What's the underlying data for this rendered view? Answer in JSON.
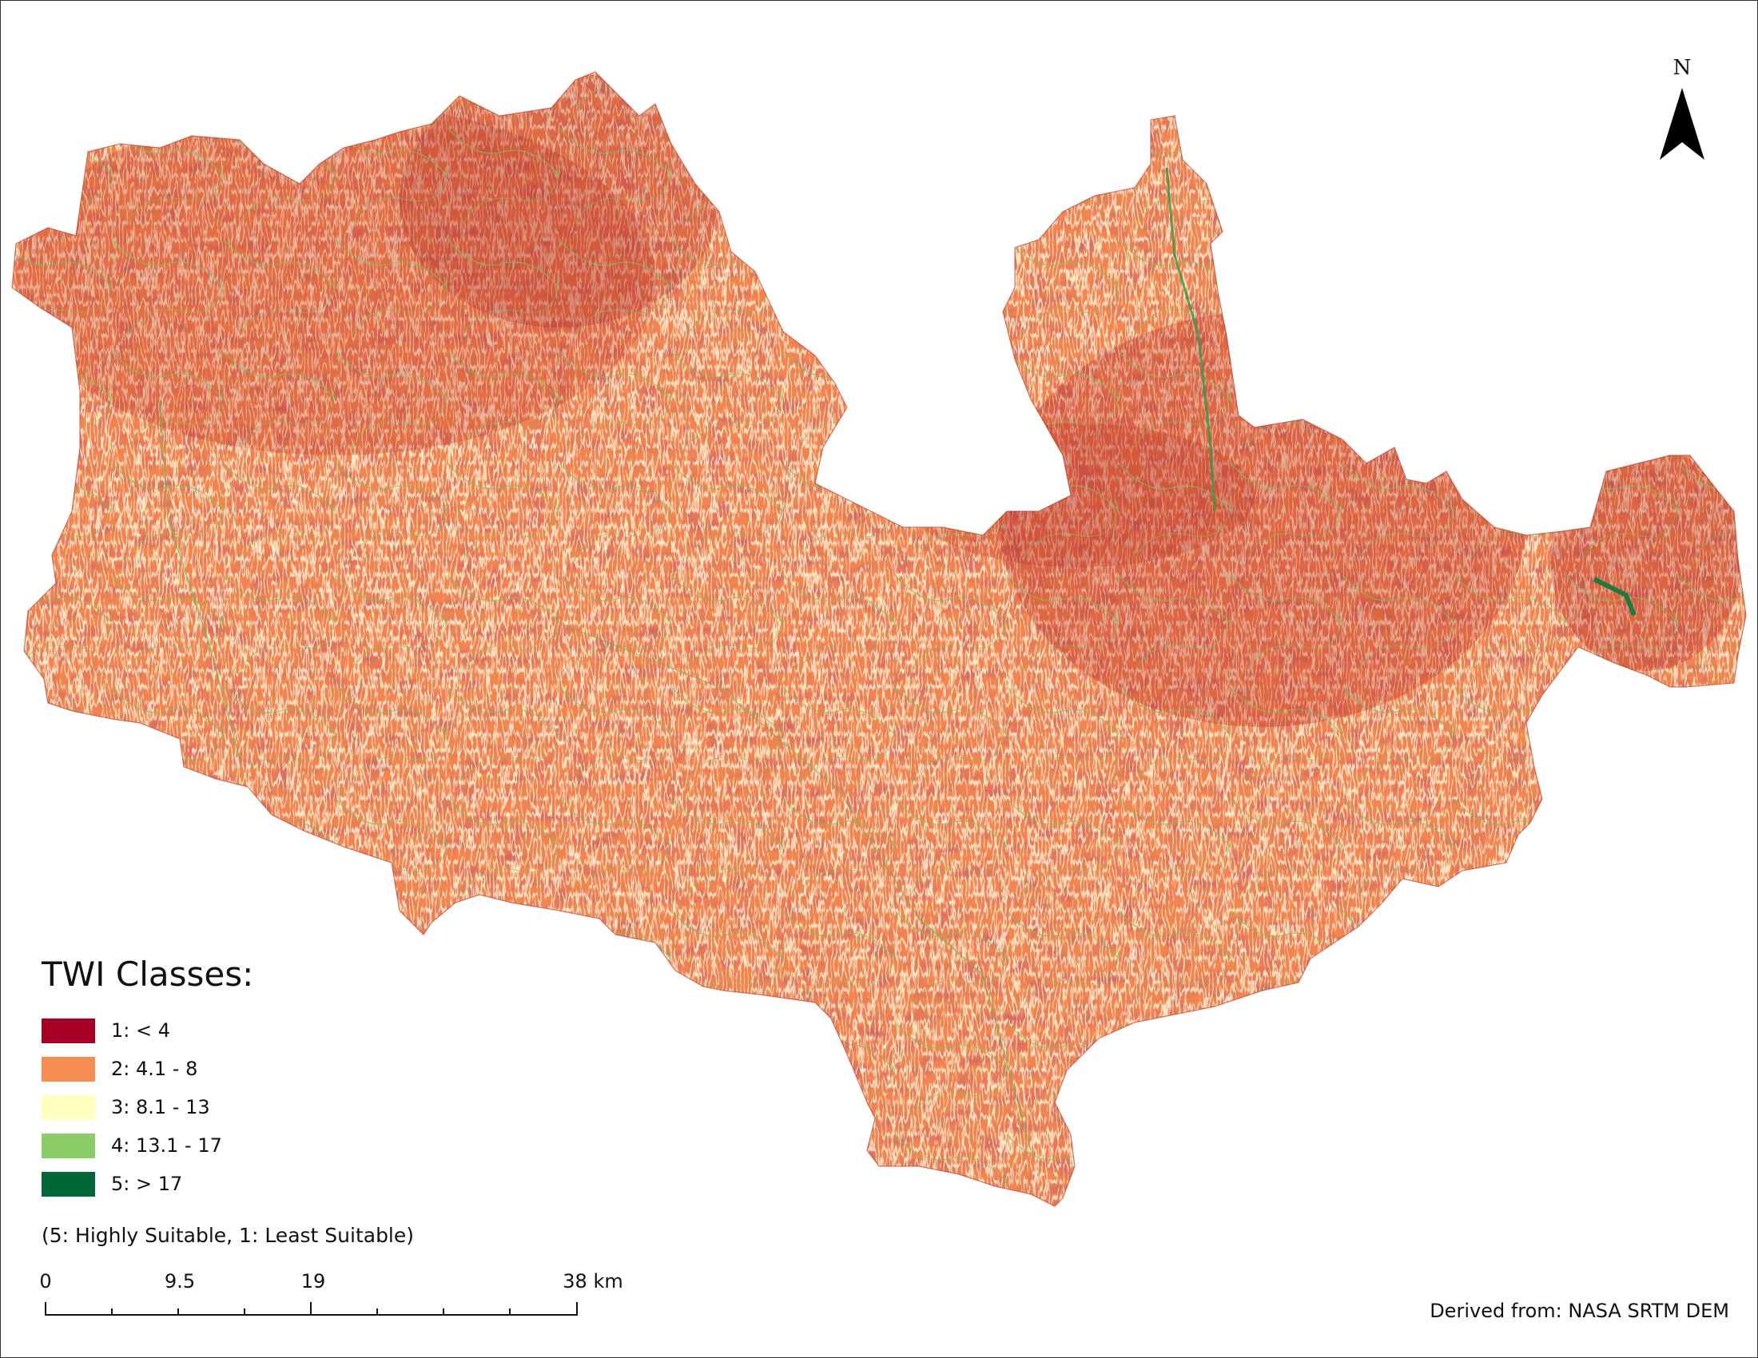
{
  "map": {
    "north_label": "N",
    "legend": {
      "title": "TWI Classes:",
      "classes": [
        {
          "label": "1: < 4",
          "color": "#a50026"
        },
        {
          "label": "2: 4.1 - 8",
          "color": "#f68d53"
        },
        {
          "label": "3: 8.1 - 13",
          "color": "#ffffbf"
        },
        {
          "label": "4: 13.1 - 17",
          "color": "#8ccc68"
        },
        {
          "label": "5: > 17",
          "color": "#006837"
        }
      ],
      "note": "(5: Highly Suitable, 1: Least Suitable)"
    },
    "scale_bar": {
      "ticks": [
        "0",
        "9.5",
        "19",
        "38 km"
      ]
    },
    "source": "Derived from: NASA SRTM DEM"
  }
}
